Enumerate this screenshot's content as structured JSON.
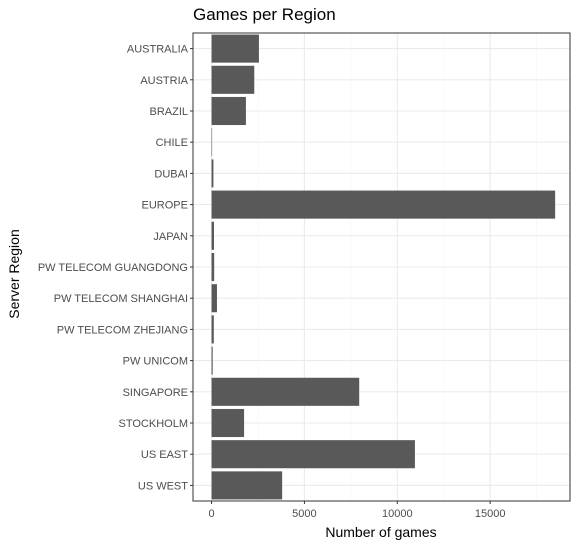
{
  "chart_data": {
    "type": "bar",
    "orientation": "horizontal",
    "title": "Games per Region",
    "xlabel": "Number of games",
    "ylabel": "Server Region",
    "categories": [
      "AUSTRALIA",
      "AUSTRIA",
      "BRAZIL",
      "CHILE",
      "DUBAI",
      "EUROPE",
      "JAPAN",
      "PW TELECOM GUANGDONG",
      "PW TELECOM SHANGHAI",
      "PW TELECOM ZHEJIANG",
      "PW UNICOM",
      "SINGAPORE",
      "STOCKHOLM",
      "US EAST",
      "US WEST"
    ],
    "values": [
      2550,
      2300,
      1850,
      10,
      100,
      18500,
      130,
      140,
      290,
      120,
      60,
      7950,
      1750,
      10950,
      3800
    ],
    "xlim": [
      -1000,
      19300
    ],
    "x_ticks": [
      0,
      5000,
      10000,
      15000
    ],
    "x_tick_labels": [
      "0",
      "5000",
      "10000",
      "15000"
    ],
    "grid": true,
    "colors": {
      "bar": "#595959",
      "grid_major": "#ebebeb",
      "grid_minor": "#f5f5f5",
      "panel_border": "#333333",
      "tick_text": "#4d4d4d"
    }
  }
}
